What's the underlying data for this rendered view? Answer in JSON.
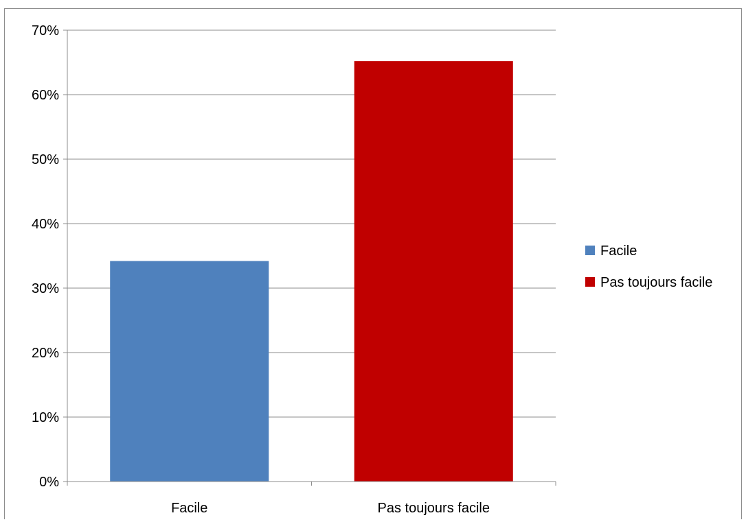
{
  "chart_data": {
    "type": "bar",
    "title": "",
    "xlabel": "",
    "ylabel": "",
    "categories": [
      "Facile",
      "Pas toujours facile"
    ],
    "values": [
      34.2,
      65.2
    ],
    "ylim": [
      0,
      70
    ],
    "yticks": [
      0,
      10,
      20,
      30,
      40,
      50,
      60,
      70
    ],
    "ytick_labels": [
      "0%",
      "10%",
      "20%",
      "30%",
      "40%",
      "50%",
      "60%",
      "70%"
    ],
    "colors": [
      "#4f81bd",
      "#c00000"
    ],
    "gridlines": true,
    "legend": {
      "placement": "right",
      "entries": [
        {
          "label": "Facile",
          "color": "#4f81bd"
        },
        {
          "label": "Pas toujours facile",
          "color": "#c00000"
        }
      ]
    }
  }
}
